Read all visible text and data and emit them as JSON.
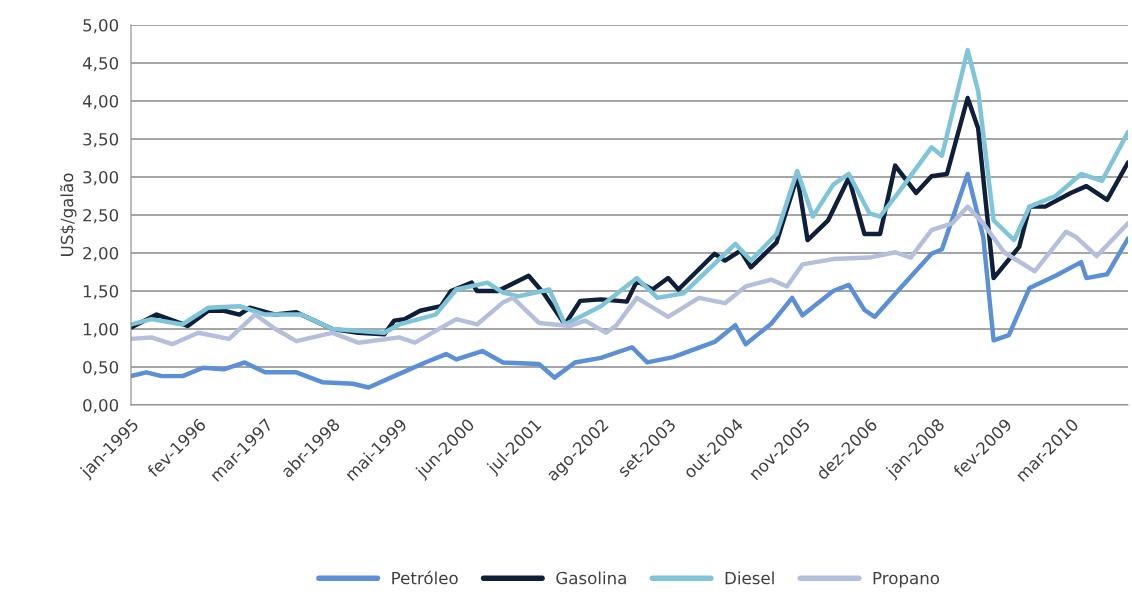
{
  "chart_data": {
    "type": "line",
    "ylabel": "US$/galão",
    "xlim": [
      "1995-01",
      "2011-02"
    ],
    "xticks": [
      {
        "value": "1995-01",
        "label": "jan-1995"
      },
      {
        "value": "1996-02",
        "label": "fev-1996"
      },
      {
        "value": "1997-03",
        "label": "mar-1997"
      },
      {
        "value": "1998-04",
        "label": "abr-1998"
      },
      {
        "value": "1999-05",
        "label": "mai-1999"
      },
      {
        "value": "2000-06",
        "label": "jun-2000"
      },
      {
        "value": "2001-07",
        "label": "jul-2001"
      },
      {
        "value": "2002-08",
        "label": "ago-2002"
      },
      {
        "value": "2003-09",
        "label": "set-2003"
      },
      {
        "value": "2004-10",
        "label": "out-2004"
      },
      {
        "value": "2005-11",
        "label": "nov-2005"
      },
      {
        "value": "2006-12",
        "label": "dez-2006"
      },
      {
        "value": "2008-01",
        "label": "jan-2008"
      },
      {
        "value": "2009-02",
        "label": "fev-2009"
      },
      {
        "value": "2010-03",
        "label": "mar-2010"
      }
    ],
    "ylim": [
      0,
      5
    ],
    "yticks": [
      {
        "value": 0,
        "label": "0,00"
      },
      {
        "value": 0.5,
        "label": "0,50"
      },
      {
        "value": 1,
        "label": "1,00"
      },
      {
        "value": 1.5,
        "label": "1,50"
      },
      {
        "value": 2,
        "label": "2,00"
      },
      {
        "value": 2.5,
        "label": "2,50"
      },
      {
        "value": 3,
        "label": "3,00"
      },
      {
        "value": 3.5,
        "label": "3,50"
      },
      {
        "value": 4,
        "label": "4,00"
      },
      {
        "value": 4.5,
        "label": "4,50"
      },
      {
        "value": 5,
        "label": "5,00"
      }
    ],
    "grid": "y",
    "legend": "bottom",
    "marker": "none",
    "line_style": "solid",
    "series": [
      {
        "name": "Petróleo",
        "color": "#5b8fd6",
        "x": [
          "1995-01",
          "1995-04",
          "1995-07",
          "1995-11",
          "1996-03",
          "1996-07",
          "1996-11",
          "1997-03",
          "1997-09",
          "1998-02",
          "1998-08",
          "1998-11",
          "1999-04",
          "1999-10",
          "2000-02",
          "2000-04",
          "2000-09",
          "2001-01",
          "2001-08",
          "2001-11",
          "2002-03",
          "2002-08",
          "2003-02",
          "2003-05",
          "2003-10",
          "2004-06",
          "2004-10",
          "2004-12",
          "2005-05",
          "2005-09",
          "2005-11",
          "2006-05",
          "2006-08",
          "2006-11",
          "2007-01",
          "2007-06",
          "2007-12",
          "2008-02",
          "2008-07",
          "2008-10",
          "2008-12",
          "2009-03",
          "2009-07",
          "2009-12",
          "2010-05",
          "2010-06",
          "2010-10",
          "2011-02"
        ],
        "values": [
          0.38,
          0.43,
          0.38,
          0.38,
          0.49,
          0.47,
          0.56,
          0.43,
          0.43,
          0.3,
          0.28,
          0.23,
          0.38,
          0.56,
          0.67,
          0.6,
          0.71,
          0.56,
          0.54,
          0.36,
          0.56,
          0.62,
          0.76,
          0.56,
          0.63,
          0.83,
          1.05,
          0.8,
          1.07,
          1.41,
          1.18,
          1.5,
          1.58,
          1.25,
          1.16,
          1.54,
          1.99,
          2.05,
          3.04,
          2.21,
          0.85,
          0.92,
          1.54,
          1.7,
          1.88,
          1.67,
          1.72,
          2.19
        ]
      },
      {
        "name": "Gasolina",
        "color": "#0f1f3a",
        "x": [
          "1995-01",
          "1995-06",
          "1995-12",
          "1996-04",
          "1996-07",
          "1996-10",
          "1996-12",
          "1997-05",
          "1997-09",
          "1998-04",
          "1998-09",
          "1999-02",
          "1999-04",
          "1999-06",
          "1999-09",
          "2000-01",
          "2000-03",
          "2000-07",
          "2000-08",
          "2000-12",
          "2001-06",
          "2001-09",
          "2002-01",
          "2002-04",
          "2002-08",
          "2003-01",
          "2003-03",
          "2003-06",
          "2003-09",
          "2003-11",
          "2004-06",
          "2004-08",
          "2004-11",
          "2005-01",
          "2005-06",
          "2005-10",
          "2005-12",
          "2006-04",
          "2006-08",
          "2006-11",
          "2007-02",
          "2007-05",
          "2007-09",
          "2007-12",
          "2008-03",
          "2008-07",
          "2008-09",
          "2008-12",
          "2009-05",
          "2009-07",
          "2009-10",
          "2010-03",
          "2010-06",
          "2010-10",
          "2011-02"
        ],
        "values": [
          1.02,
          1.19,
          1.04,
          1.24,
          1.24,
          1.19,
          1.28,
          1.19,
          1.22,
          1.0,
          0.95,
          0.93,
          1.11,
          1.13,
          1.24,
          1.3,
          1.5,
          1.61,
          1.5,
          1.5,
          1.7,
          1.46,
          1.06,
          1.37,
          1.39,
          1.36,
          1.63,
          1.52,
          1.67,
          1.52,
          1.99,
          1.9,
          2.03,
          1.81,
          2.14,
          3.01,
          2.17,
          2.43,
          2.99,
          2.25,
          2.25,
          3.15,
          2.79,
          3.01,
          3.04,
          4.04,
          3.64,
          1.67,
          2.08,
          2.61,
          2.61,
          2.79,
          2.88,
          2.7,
          3.19
        ]
      },
      {
        "name": "Diesel",
        "color": "#7fc4d8",
        "x": [
          "1995-01",
          "1995-05",
          "1995-11",
          "1996-04",
          "1996-10",
          "1997-03",
          "1997-10",
          "1998-04",
          "1999-02",
          "1999-05",
          "1999-12",
          "2000-04",
          "2000-10",
          "2001-01",
          "2001-04",
          "2001-10",
          "2002-01",
          "2002-08",
          "2003-03",
          "2003-07",
          "2003-12",
          "2004-10",
          "2005-01",
          "2005-06",
          "2005-10",
          "2006-01",
          "2006-05",
          "2006-08",
          "2006-12",
          "2007-02",
          "2007-06",
          "2007-12",
          "2008-02",
          "2008-07",
          "2008-09",
          "2008-12",
          "2009-04",
          "2009-07",
          "2009-12",
          "2010-05",
          "2010-09",
          "2011-02"
        ],
        "values": [
          1.06,
          1.13,
          1.06,
          1.28,
          1.3,
          1.19,
          1.19,
          1.0,
          0.95,
          1.06,
          1.19,
          1.52,
          1.61,
          1.48,
          1.43,
          1.52,
          1.06,
          1.3,
          1.67,
          1.41,
          1.47,
          2.12,
          1.9,
          2.25,
          3.08,
          2.48,
          2.9,
          3.04,
          2.52,
          2.48,
          2.83,
          3.39,
          3.28,
          4.67,
          4.13,
          2.43,
          2.17,
          2.61,
          2.75,
          3.04,
          2.95,
          3.59
        ]
      },
      {
        "name": "Propano",
        "color": "#b4bfdc",
        "x": [
          "1995-01",
          "1995-05",
          "1995-09",
          "1996-02",
          "1996-08",
          "1997-01",
          "1997-05",
          "1997-09",
          "1998-04",
          "1998-09",
          "1999-05",
          "1999-08",
          "2000-04",
          "2000-08",
          "2001-01",
          "2001-03",
          "2001-08",
          "2002-02",
          "2002-05",
          "2002-09",
          "2002-11",
          "2003-03",
          "2003-09",
          "2004-03",
          "2004-08",
          "2004-12",
          "2005-05",
          "2005-08",
          "2005-11",
          "2006-05",
          "2006-12",
          "2007-05",
          "2007-08",
          "2007-12",
          "2008-04",
          "2008-07",
          "2008-10",
          "2009-02",
          "2009-08",
          "2010-02",
          "2010-04",
          "2010-08",
          "2011-02"
        ],
        "values": [
          0.87,
          0.89,
          0.8,
          0.95,
          0.87,
          1.19,
          1.0,
          0.84,
          0.95,
          0.82,
          0.89,
          0.82,
          1.13,
          1.06,
          1.35,
          1.41,
          1.08,
          1.04,
          1.11,
          0.95,
          1.05,
          1.41,
          1.16,
          1.41,
          1.34,
          1.56,
          1.65,
          1.56,
          1.85,
          1.92,
          1.94,
          2.01,
          1.94,
          2.3,
          2.39,
          2.61,
          2.39,
          2.01,
          1.76,
          2.28,
          2.21,
          1.96,
          2.39
        ]
      }
    ]
  }
}
